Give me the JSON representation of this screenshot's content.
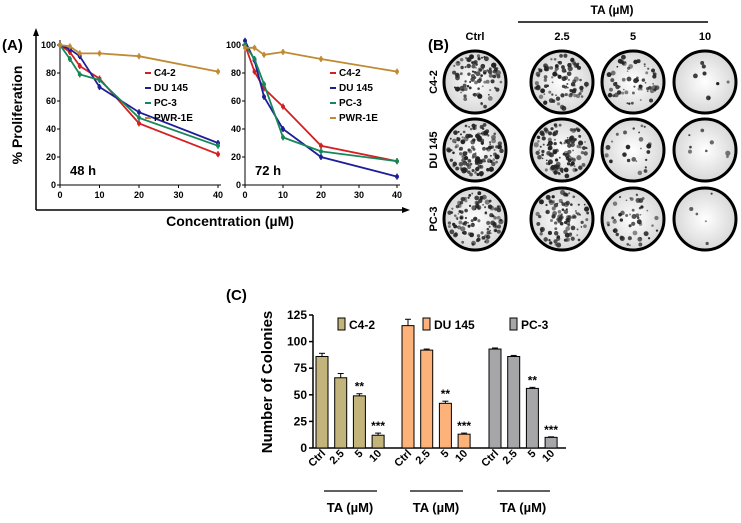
{
  "chart_data": [
    {
      "type": "line",
      "panel": "(A)",
      "ylabel": "% Proliferation",
      "xlabel": "Concentration (µM)",
      "ylim": [
        0,
        100
      ],
      "xlim": [
        0,
        40
      ],
      "yticks": [
        "0",
        "20",
        "40",
        "60",
        "80",
        "100"
      ],
      "xticks": [
        "0",
        "10",
        "20",
        "30",
        "40"
      ],
      "x": [
        0,
        2.5,
        5,
        10,
        20,
        40
      ],
      "subplots": [
        {
          "label": "48 h",
          "series": [
            {
              "name": "C4-2",
              "color": "#d42020",
              "values": [
                100,
                95,
                85,
                76,
                44,
                22
              ]
            },
            {
              "name": "DU 145",
              "color": "#1e1e9a",
              "values": [
                100,
                97,
                92,
                70,
                52,
                30
              ]
            },
            {
              "name": "PC-3",
              "color": "#17875a",
              "values": [
                100,
                90,
                79,
                75,
                48,
                28
              ]
            },
            {
              "name": "PWR-1E",
              "color": "#c08a35",
              "values": [
                100,
                99,
                94,
                94,
                92,
                81
              ]
            }
          ]
        },
        {
          "label": "72 h",
          "series": [
            {
              "name": "C4-2",
              "color": "#d42020",
              "values": [
                100,
                81,
                69,
                56,
                28,
                17
              ]
            },
            {
              "name": "DU 145",
              "color": "#1e1e9a",
              "values": [
                103,
                89,
                63,
                40,
                20,
                6
              ]
            },
            {
              "name": "PC-3",
              "color": "#17875a",
              "values": [
                100,
                90,
                72,
                34,
                24,
                17
              ]
            },
            {
              "name": "PWR-1E",
              "color": "#c08a35",
              "values": [
                98,
                98,
                93,
                95,
                90,
                81
              ]
            }
          ]
        }
      ]
    },
    {
      "type": "image-grid",
      "panel": "(B)",
      "header": "TA (µM)",
      "columns": [
        "Ctrl",
        "2.5",
        "5",
        "10"
      ],
      "rows": [
        "C4-2",
        "DU 145",
        "PC-3"
      ]
    },
    {
      "type": "bar",
      "panel": "(C)",
      "ylabel": "Number of Colonies",
      "ylim": [
        0,
        125
      ],
      "yticks": [
        "0",
        "25",
        "50",
        "75",
        "100",
        "125"
      ],
      "categories": [
        "Ctrl",
        "2.5",
        "5",
        "10"
      ],
      "group_label": "TA (µM)",
      "series": [
        {
          "name": "C4-2",
          "color": "#c2b47a",
          "values": [
            86,
            66,
            49,
            12
          ],
          "errors": [
            3,
            4,
            2,
            2
          ],
          "significance": [
            "",
            "",
            "**",
            "***"
          ]
        },
        {
          "name": "DU 145",
          "color": "#fdb27a",
          "values": [
            115,
            92,
            42,
            13
          ],
          "errors": [
            6,
            1,
            2,
            1
          ],
          "significance": [
            "",
            "",
            "**",
            "***"
          ]
        },
        {
          "name": "PC-3",
          "color": "#a6a6a8",
          "values": [
            93,
            86,
            56,
            10
          ],
          "errors": [
            1,
            1,
            1,
            0.5
          ],
          "significance": [
            "",
            "",
            "**",
            "***"
          ]
        }
      ]
    }
  ]
}
